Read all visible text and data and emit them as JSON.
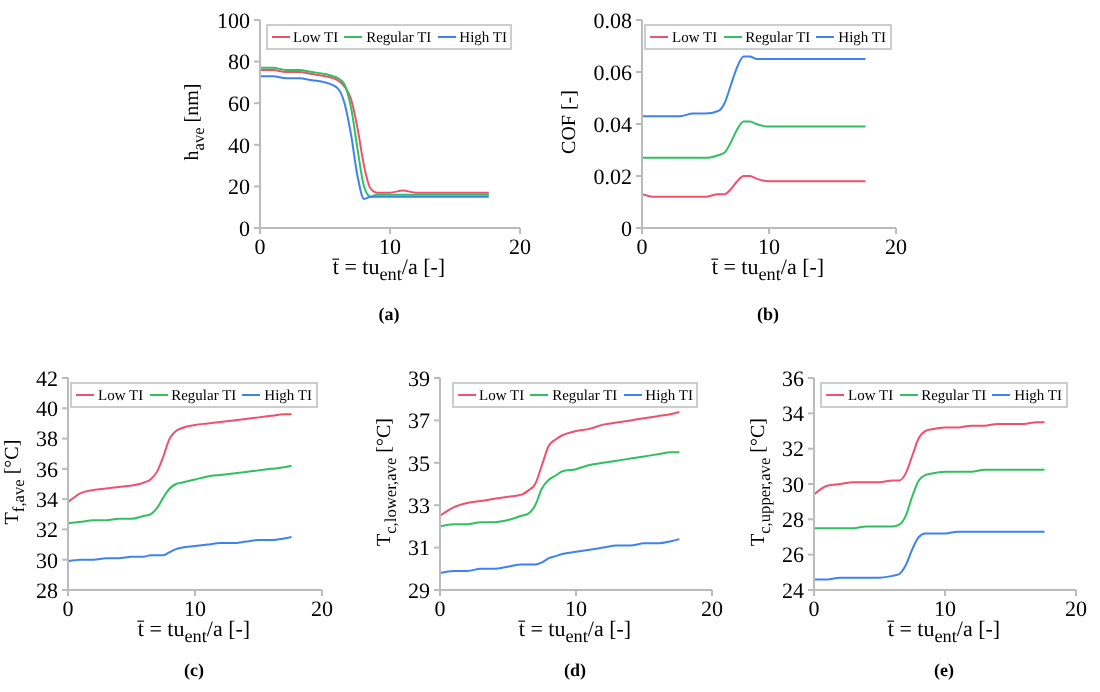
{
  "chart_data": [
    {
      "type": "line",
      "xlabel": "t̄ = tu$_{ent}$/a [-]",
      "ylabel": "h$_{ave}$ [nm]",
      "annotations": [
        "(a)"
      ],
      "legend": "top",
      "xlim": [
        0,
        20
      ],
      "xticks": [
        0,
        10,
        20
      ],
      "ylim": [
        0,
        100
      ],
      "yticks": [
        0,
        20,
        40,
        60,
        80,
        100
      ],
      "x": [
        0,
        1,
        2,
        3,
        4,
        5,
        6,
        6.5,
        7,
        7.5,
        8,
        8.5,
        9,
        10,
        11,
        12,
        13,
        14,
        15,
        16,
        17,
        17.6
      ],
      "series": [
        {
          "name": "Low TI",
          "color": "#f0506e",
          "values": [
            76,
            76,
            75,
            75,
            74,
            73,
            71,
            68,
            62,
            48,
            30,
            19,
            17,
            17,
            18,
            17,
            17,
            17,
            17,
            17,
            17,
            17
          ]
        },
        {
          "name": "Regular TI",
          "color": "#30c060",
          "values": [
            77,
            77,
            76,
            76,
            75,
            74,
            72,
            69,
            58,
            38,
            20,
            15,
            16,
            16,
            16,
            16,
            16,
            16,
            16,
            16,
            16,
            16
          ]
        },
        {
          "name": "High TI",
          "color": "#3c82f0",
          "values": [
            73,
            73,
            72,
            72,
            71,
            70,
            67,
            60,
            45,
            25,
            14,
            15,
            15,
            15,
            15,
            15,
            15,
            15,
            15,
            15,
            15,
            15
          ]
        }
      ]
    },
    {
      "type": "line",
      "xlabel": "t̄ = tu$_{ent}$/a [-]",
      "ylabel": "COF [-]",
      "annotations": [
        "(b)"
      ],
      "legend": "top",
      "xlim": [
        0,
        20
      ],
      "xticks": [
        0,
        10,
        20
      ],
      "ylim": [
        0,
        0.08
      ],
      "yticks": [
        0,
        0.02,
        0.04,
        0.06,
        0.08
      ],
      "x": [
        0,
        1,
        2,
        3,
        4,
        5,
        6,
        6.5,
        7,
        7.5,
        8,
        8.5,
        9,
        10,
        11,
        12,
        13,
        14,
        15,
        16,
        17,
        17.6
      ],
      "series": [
        {
          "name": "Low TI",
          "color": "#f0506e",
          "values": [
            0.013,
            0.012,
            0.012,
            0.012,
            0.012,
            0.012,
            0.013,
            0.013,
            0.015,
            0.018,
            0.02,
            0.02,
            0.019,
            0.018,
            0.018,
            0.018,
            0.018,
            0.018,
            0.018,
            0.018,
            0.018,
            0.018
          ]
        },
        {
          "name": "Regular TI",
          "color": "#30c060",
          "values": [
            0.027,
            0.027,
            0.027,
            0.027,
            0.027,
            0.027,
            0.028,
            0.029,
            0.033,
            0.038,
            0.041,
            0.041,
            0.04,
            0.039,
            0.039,
            0.039,
            0.039,
            0.039,
            0.039,
            0.039,
            0.039,
            0.039
          ]
        },
        {
          "name": "High TI",
          "color": "#3c82f0",
          "values": [
            0.043,
            0.043,
            0.043,
            0.043,
            0.044,
            0.044,
            0.045,
            0.048,
            0.055,
            0.062,
            0.066,
            0.066,
            0.065,
            0.065,
            0.065,
            0.065,
            0.065,
            0.065,
            0.065,
            0.065,
            0.065,
            0.065
          ]
        }
      ]
    },
    {
      "type": "line",
      "xlabel": "t̄ = tu$_{ent}$/a [-]",
      "ylabel": "T$_{f,ave}$ [°C]",
      "annotations": [
        "(c)"
      ],
      "legend": "top",
      "xlim": [
        0,
        20
      ],
      "xticks": [
        0,
        10,
        20
      ],
      "ylim": [
        28,
        42
      ],
      "yticks": [
        28,
        30,
        32,
        34,
        36,
        38,
        40,
        42
      ],
      "x": [
        0,
        1,
        2,
        3,
        4,
        5,
        6,
        6.5,
        7,
        7.5,
        8,
        8.5,
        9,
        10,
        11,
        12,
        13,
        14,
        15,
        16,
        17,
        17.6
      ],
      "series": [
        {
          "name": "Low TI",
          "color": "#f0506e",
          "values": [
            33.8,
            34.4,
            34.6,
            34.7,
            34.8,
            34.9,
            35.1,
            35.3,
            35.8,
            36.8,
            38.0,
            38.5,
            38.7,
            38.9,
            39.0,
            39.1,
            39.2,
            39.3,
            39.4,
            39.5,
            39.6,
            39.6
          ]
        },
        {
          "name": "Regular TI",
          "color": "#30c060",
          "values": [
            32.4,
            32.5,
            32.6,
            32.6,
            32.7,
            32.7,
            32.9,
            33.0,
            33.4,
            34.1,
            34.7,
            35.0,
            35.1,
            35.3,
            35.5,
            35.6,
            35.7,
            35.8,
            35.9,
            36.0,
            36.1,
            36.2
          ]
        },
        {
          "name": "High TI",
          "color": "#3c82f0",
          "values": [
            29.9,
            30.0,
            30.0,
            30.1,
            30.1,
            30.2,
            30.2,
            30.3,
            30.3,
            30.3,
            30.5,
            30.7,
            30.8,
            30.9,
            31.0,
            31.1,
            31.1,
            31.2,
            31.3,
            31.3,
            31.4,
            31.5
          ]
        }
      ]
    },
    {
      "type": "line",
      "xlabel": "t̄ = tu$_{ent}$/a [-]",
      "ylabel": "T$_{c,lower,ave}$ [°C]",
      "annotations": [
        "(d)"
      ],
      "legend": "top",
      "xlim": [
        0,
        20
      ],
      "xticks": [
        0,
        10,
        20
      ],
      "ylim": [
        29,
        39
      ],
      "yticks": [
        29,
        31,
        33,
        35,
        37,
        39
      ],
      "x": [
        0,
        1,
        2,
        3,
        4,
        5,
        6,
        6.5,
        7,
        7.5,
        8,
        8.5,
        9,
        10,
        11,
        12,
        13,
        14,
        15,
        16,
        17,
        17.6
      ],
      "series": [
        {
          "name": "Low TI",
          "color": "#f0506e",
          "values": [
            32.5,
            32.9,
            33.1,
            33.2,
            33.3,
            33.4,
            33.5,
            33.7,
            34.0,
            34.9,
            35.8,
            36.1,
            36.3,
            36.5,
            36.6,
            36.8,
            36.9,
            37.0,
            37.1,
            37.2,
            37.3,
            37.4
          ]
        },
        {
          "name": "Regular TI",
          "color": "#30c060",
          "values": [
            32.0,
            32.1,
            32.1,
            32.2,
            32.2,
            32.3,
            32.5,
            32.6,
            33.0,
            33.8,
            34.2,
            34.4,
            34.6,
            34.7,
            34.9,
            35.0,
            35.1,
            35.2,
            35.3,
            35.4,
            35.5,
            35.5
          ]
        },
        {
          "name": "High TI",
          "color": "#3c82f0",
          "values": [
            29.8,
            29.9,
            29.9,
            30.0,
            30.0,
            30.1,
            30.2,
            30.2,
            30.2,
            30.3,
            30.5,
            30.6,
            30.7,
            30.8,
            30.9,
            31.0,
            31.1,
            31.1,
            31.2,
            31.2,
            31.3,
            31.4
          ]
        }
      ]
    },
    {
      "type": "line",
      "xlabel": "t̄ = tu$_{ent}$/a [-]",
      "ylabel": "T$_{c,upper,ave}$ [°C]",
      "annotations": [
        "(e)"
      ],
      "legend": "top",
      "xlim": [
        0,
        20
      ],
      "xticks": [
        0,
        10,
        20
      ],
      "ylim": [
        24,
        36
      ],
      "yticks": [
        24,
        26,
        28,
        30,
        32,
        34,
        36
      ],
      "x": [
        0,
        1,
        2,
        3,
        4,
        5,
        6,
        6.5,
        7,
        7.5,
        8,
        8.5,
        9,
        10,
        11,
        12,
        13,
        14,
        15,
        16,
        17,
        17.6
      ],
      "series": [
        {
          "name": "Low TI",
          "color": "#f0506e",
          "values": [
            29.4,
            29.9,
            30.0,
            30.1,
            30.1,
            30.1,
            30.2,
            30.2,
            30.6,
            31.6,
            32.6,
            33.0,
            33.1,
            33.2,
            33.2,
            33.3,
            33.3,
            33.4,
            33.4,
            33.4,
            33.5,
            33.5
          ]
        },
        {
          "name": "Regular TI",
          "color": "#30c060",
          "values": [
            27.5,
            27.5,
            27.5,
            27.5,
            27.6,
            27.6,
            27.6,
            27.7,
            28.2,
            29.3,
            30.2,
            30.5,
            30.6,
            30.7,
            30.7,
            30.7,
            30.8,
            30.8,
            30.8,
            30.8,
            30.8,
            30.8
          ]
        },
        {
          "name": "High TI",
          "color": "#3c82f0",
          "values": [
            24.6,
            24.6,
            24.7,
            24.7,
            24.7,
            24.7,
            24.8,
            24.9,
            25.4,
            26.3,
            27.0,
            27.2,
            27.2,
            27.2,
            27.3,
            27.3,
            27.3,
            27.3,
            27.3,
            27.3,
            27.3,
            27.3
          ]
        }
      ]
    }
  ]
}
